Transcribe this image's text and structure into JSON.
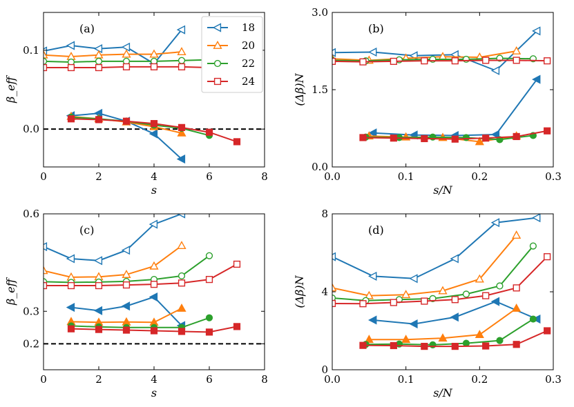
{
  "chart_data": [
    {
      "panel": "(a)",
      "type": "line",
      "xlabel": "s",
      "ylabel": "β_eff",
      "xlim": [
        0,
        8
      ],
      "ylim": [
        -0.048,
        0.148
      ],
      "xticks": [
        0,
        2,
        4,
        6,
        8
      ],
      "xtick_labels": [
        "0",
        "2",
        "4",
        "6",
        "8"
      ],
      "yticks": [
        0.0,
        0.1
      ],
      "ytick_labels": [
        "0.0",
        "0.1"
      ],
      "hline": 0.0,
      "legend": {
        "position": "top-right",
        "entries": [
          "18",
          "20",
          "22",
          "24"
        ]
      },
      "series": [
        {
          "name": "18",
          "color": "#1f77b4",
          "marker": "triangle-left",
          "fill": "open",
          "x": [
            0,
            1,
            2,
            3,
            4,
            5
          ],
          "y": [
            0.099,
            0.106,
            0.102,
            0.104,
            0.083,
            0.126
          ]
        },
        {
          "name": "20",
          "color": "#ff7f0e",
          "marker": "triangle-up",
          "fill": "open",
          "x": [
            0,
            1,
            2,
            3,
            4,
            5
          ],
          "y": [
            0.094,
            0.092,
            0.094,
            0.095,
            0.095,
            0.098
          ]
        },
        {
          "name": "22",
          "color": "#2ca02c",
          "marker": "circle",
          "fill": "open",
          "x": [
            0,
            1,
            2,
            3,
            4,
            5,
            6
          ],
          "y": [
            0.086,
            0.085,
            0.086,
            0.086,
            0.086,
            0.087,
            0.088
          ]
        },
        {
          "name": "24",
          "color": "#d62728",
          "marker": "square",
          "fill": "open",
          "x": [
            0,
            1,
            2,
            3,
            4,
            5,
            6,
            7
          ],
          "y": [
            0.078,
            0.078,
            0.078,
            0.079,
            0.079,
            0.079,
            0.078,
            0.077
          ]
        },
        {
          "name": "18",
          "color": "#1f77b4",
          "marker": "triangle-left",
          "fill": "filled",
          "x": [
            1,
            2,
            3,
            4,
            5
          ],
          "y": [
            0.017,
            0.02,
            0.01,
            -0.006,
            -0.038
          ]
        },
        {
          "name": "20",
          "color": "#ff7f0e",
          "marker": "triangle-up",
          "fill": "filled",
          "x": [
            1,
            2,
            3,
            4,
            5
          ],
          "y": [
            0.016,
            0.013,
            0.009,
            0.003,
            -0.005
          ]
        },
        {
          "name": "22",
          "color": "#2ca02c",
          "marker": "circle",
          "fill": "filled",
          "x": [
            1,
            2,
            3,
            4,
            5,
            6
          ],
          "y": [
            0.015,
            0.013,
            0.01,
            0.005,
            0.001,
            -0.008
          ]
        },
        {
          "name": "24",
          "color": "#d62728",
          "marker": "square",
          "fill": "filled",
          "x": [
            1,
            2,
            3,
            4,
            5,
            6,
            7
          ],
          "y": [
            0.013,
            0.012,
            0.01,
            0.007,
            0.002,
            -0.004,
            -0.016
          ]
        }
      ]
    },
    {
      "panel": "(b)",
      "type": "line",
      "xlabel": "s/N",
      "ylabel": "(Δβ)N",
      "xlim": [
        0,
        0.3
      ],
      "ylim": [
        0,
        3.0
      ],
      "xticks": [
        0,
        0.1,
        0.2,
        0.3
      ],
      "xtick_labels": [
        "0.0",
        "0.1",
        "0.2",
        "0.3"
      ],
      "yticks": [
        0,
        1.5,
        3.0
      ],
      "ytick_labels": [
        "0.0",
        "1.5",
        "3.0"
      ],
      "series": [
        {
          "name": "18",
          "color": "#1f77b4",
          "marker": "triangle-left",
          "fill": "open",
          "x": [
            0,
            0.0556,
            0.1111,
            0.1667,
            0.2222,
            0.2778
          ],
          "y": [
            2.22,
            2.23,
            2.16,
            2.18,
            1.87,
            2.64
          ]
        },
        {
          "name": "20",
          "color": "#ff7f0e",
          "marker": "triangle-up",
          "fill": "open",
          "x": [
            0,
            0.05,
            0.1,
            0.15,
            0.2,
            0.25
          ],
          "y": [
            2.1,
            2.07,
            2.11,
            2.14,
            2.13,
            2.25
          ]
        },
        {
          "name": "22",
          "color": "#2ca02c",
          "marker": "circle",
          "fill": "open",
          "x": [
            0,
            0.0455,
            0.0909,
            0.1364,
            0.1818,
            0.2273,
            0.2727
          ],
          "y": [
            2.07,
            2.06,
            2.08,
            2.09,
            2.09,
            2.11,
            2.1
          ]
        },
        {
          "name": "24",
          "color": "#d62728",
          "marker": "square",
          "fill": "open",
          "x": [
            0,
            0.0417,
            0.0833,
            0.125,
            0.1667,
            0.2083,
            0.25,
            0.2917
          ],
          "y": [
            2.05,
            2.04,
            2.05,
            2.06,
            2.06,
            2.07,
            2.07,
            2.06
          ]
        },
        {
          "name": "18",
          "color": "#1f77b4",
          "marker": "triangle-left",
          "fill": "filled",
          "x": [
            0.0556,
            0.1111,
            0.1667,
            0.2222,
            0.2778
          ],
          "y": [
            0.66,
            0.62,
            0.61,
            0.63,
            1.7
          ]
        },
        {
          "name": "20",
          "color": "#ff7f0e",
          "marker": "triangle-up",
          "fill": "filled",
          "x": [
            0.05,
            0.1,
            0.15,
            0.2,
            0.25
          ],
          "y": [
            0.6,
            0.58,
            0.57,
            0.49,
            0.6
          ]
        },
        {
          "name": "22",
          "color": "#2ca02c",
          "marker": "circle",
          "fill": "filled",
          "x": [
            0.0455,
            0.0909,
            0.1364,
            0.1818,
            0.2273,
            0.2727
          ],
          "y": [
            0.58,
            0.57,
            0.58,
            0.57,
            0.53,
            0.61
          ]
        },
        {
          "name": "24",
          "color": "#d62728",
          "marker": "square",
          "fill": "filled",
          "x": [
            0.0417,
            0.0833,
            0.125,
            0.1667,
            0.2083,
            0.25,
            0.2917
          ],
          "y": [
            0.57,
            0.56,
            0.55,
            0.54,
            0.56,
            0.59,
            0.7
          ]
        }
      ]
    },
    {
      "panel": "(c)",
      "type": "line",
      "xlabel": "s",
      "ylabel": "β_eff",
      "xlim": [
        0,
        8
      ],
      "ylim": [
        0.12,
        0.6
      ],
      "xticks": [
        0,
        2,
        4,
        6,
        8
      ],
      "xtick_labels": [
        "0",
        "2",
        "4",
        "6",
        "8"
      ],
      "yticks": [
        0.2,
        0.3,
        0.6
      ],
      "ytick_labels": [
        "0.2",
        "0.3",
        "0.6"
      ],
      "hline": 0.2,
      "series": [
        {
          "name": "18",
          "color": "#1f77b4",
          "marker": "triangle-left",
          "fill": "open",
          "x": [
            0,
            1,
            2,
            3,
            4,
            5
          ],
          "y": [
            0.499,
            0.462,
            0.456,
            0.488,
            0.568,
            0.6
          ]
        },
        {
          "name": "20",
          "color": "#ff7f0e",
          "marker": "triangle-up",
          "fill": "open",
          "x": [
            0,
            1,
            2,
            3,
            4,
            5
          ],
          "y": [
            0.425,
            0.405,
            0.406,
            0.413,
            0.439,
            0.502
          ]
        },
        {
          "name": "22",
          "color": "#2ca02c",
          "marker": "circle",
          "fill": "open",
          "x": [
            0,
            1,
            2,
            3,
            4,
            5,
            6
          ],
          "y": [
            0.391,
            0.389,
            0.39,
            0.392,
            0.398,
            0.409,
            0.471
          ]
        },
        {
          "name": "24",
          "color": "#d62728",
          "marker": "square",
          "fill": "open",
          "x": [
            0,
            1,
            2,
            3,
            4,
            5,
            6,
            7
          ],
          "y": [
            0.379,
            0.379,
            0.379,
            0.381,
            0.383,
            0.387,
            0.398,
            0.445
          ]
        },
        {
          "name": "18",
          "color": "#1f77b4",
          "marker": "triangle-left",
          "fill": "filled",
          "x": [
            1,
            2,
            3,
            4,
            5
          ],
          "y": [
            0.312,
            0.302,
            0.316,
            0.344,
            0.256
          ]
        },
        {
          "name": "20",
          "color": "#ff7f0e",
          "marker": "triangle-up",
          "fill": "filled",
          "x": [
            1,
            2,
            3,
            4,
            5
          ],
          "y": [
            0.268,
            0.266,
            0.267,
            0.266,
            0.309
          ]
        },
        {
          "name": "22",
          "color": "#2ca02c",
          "marker": "circle",
          "fill": "filled",
          "x": [
            1,
            2,
            3,
            4,
            5,
            6
          ],
          "y": [
            0.255,
            0.252,
            0.25,
            0.25,
            0.25,
            0.28
          ]
        },
        {
          "name": "24",
          "color": "#d62728",
          "marker": "square",
          "fill": "filled",
          "x": [
            1,
            2,
            3,
            4,
            5,
            6,
            7
          ],
          "y": [
            0.246,
            0.244,
            0.242,
            0.24,
            0.238,
            0.236,
            0.253
          ]
        }
      ]
    },
    {
      "panel": "(d)",
      "type": "line",
      "xlabel": "s/N",
      "ylabel": "(Δβ)N",
      "xlim": [
        0,
        0.3
      ],
      "ylim": [
        0,
        8
      ],
      "xticks": [
        0,
        0.1,
        0.2,
        0.3
      ],
      "xtick_labels": [
        "0.0",
        "0.1",
        "0.2",
        "0.3"
      ],
      "yticks": [
        0,
        4,
        8
      ],
      "ytick_labels": [
        "0",
        "4",
        "8"
      ],
      "series": [
        {
          "name": "18",
          "color": "#1f77b4",
          "marker": "triangle-left",
          "fill": "open",
          "x": [
            0,
            0.0556,
            0.1111,
            0.1667,
            0.2222,
            0.2778
          ],
          "y": [
            5.8,
            4.8,
            4.68,
            5.7,
            7.55,
            7.8
          ]
        },
        {
          "name": "20",
          "color": "#ff7f0e",
          "marker": "triangle-up",
          "fill": "open",
          "x": [
            0,
            0.05,
            0.1,
            0.15,
            0.2,
            0.25
          ],
          "y": [
            4.2,
            3.8,
            3.85,
            4.05,
            4.65,
            6.9
          ]
        },
        {
          "name": "22",
          "color": "#2ca02c",
          "marker": "circle",
          "fill": "open",
          "x": [
            0,
            0.0455,
            0.0909,
            0.1364,
            0.1818,
            0.2273,
            0.2727
          ],
          "y": [
            3.68,
            3.55,
            3.6,
            3.65,
            3.88,
            4.3,
            6.35
          ]
        },
        {
          "name": "24",
          "color": "#d62728",
          "marker": "square",
          "fill": "open",
          "x": [
            0,
            0.0417,
            0.0833,
            0.125,
            0.1667,
            0.2083,
            0.25,
            0.2917
          ],
          "y": [
            3.4,
            3.39,
            3.45,
            3.52,
            3.6,
            3.8,
            4.2,
            5.8
          ]
        },
        {
          "name": "18",
          "color": "#1f77b4",
          "marker": "triangle-left",
          "fill": "filled",
          "x": [
            0.0556,
            0.1111,
            0.1667,
            0.2222,
            0.2778
          ],
          "y": [
            2.55,
            2.35,
            2.7,
            3.5,
            2.6
          ]
        },
        {
          "name": "20",
          "color": "#ff7f0e",
          "marker": "triangle-up",
          "fill": "filled",
          "x": [
            0.05,
            0.1,
            0.15,
            0.2,
            0.25
          ],
          "y": [
            1.55,
            1.55,
            1.62,
            1.8,
            3.15
          ]
        },
        {
          "name": "22",
          "color": "#2ca02c",
          "marker": "circle",
          "fill": "filled",
          "x": [
            0.0455,
            0.0909,
            0.1364,
            0.1818,
            0.2273,
            0.2727
          ],
          "y": [
            1.3,
            1.32,
            1.28,
            1.36,
            1.5,
            2.6
          ]
        },
        {
          "name": "24",
          "color": "#d62728",
          "marker": "square",
          "fill": "filled",
          "x": [
            0.0417,
            0.0833,
            0.125,
            0.1667,
            0.2083,
            0.25,
            0.2917
          ],
          "y": [
            1.25,
            1.24,
            1.2,
            1.2,
            1.22,
            1.3,
            2.0
          ]
        }
      ]
    }
  ]
}
